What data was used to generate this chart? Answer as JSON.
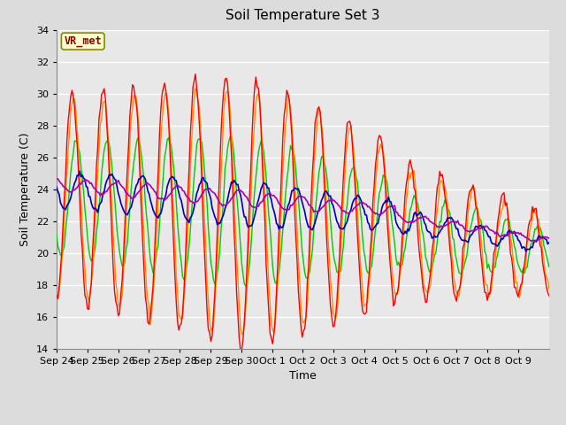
{
  "title": "Soil Temperature Set 3",
  "xlabel": "Time",
  "ylabel": "Soil Temperature (C)",
  "ylim": [
    14,
    34
  ],
  "yticks": [
    14,
    16,
    18,
    20,
    22,
    24,
    26,
    28,
    30,
    32,
    34
  ],
  "x_labels": [
    "Sep 24",
    "Sep 25",
    "Sep 26",
    "Sep 27",
    "Sep 28",
    "Sep 29",
    "Sep 30",
    "Oct 1",
    "Oct 2",
    "Oct 3",
    "Oct 4",
    "Oct 5",
    "Oct 6",
    "Oct 7",
    "Oct 8",
    "Oct 9"
  ],
  "annotation_label": "VR_met",
  "annotation_bg": "#FFFFCC",
  "annotation_border": "#888800",
  "annotation_text_color": "#880000",
  "colors": {
    "Tsoil -2cm": "#FF0000",
    "Tsoil -4cm": "#FF8C00",
    "Tsoil -8cm": "#00CC00",
    "Tsoil -16cm": "#0000BB",
    "Tsoil -32cm": "#AA00AA"
  },
  "bg_color": "#E8E8E8",
  "grid_color": "#FFFFFF",
  "fig_bg": "#DCDCDC",
  "title_fontsize": 11,
  "label_fontsize": 9,
  "tick_fontsize": 8
}
